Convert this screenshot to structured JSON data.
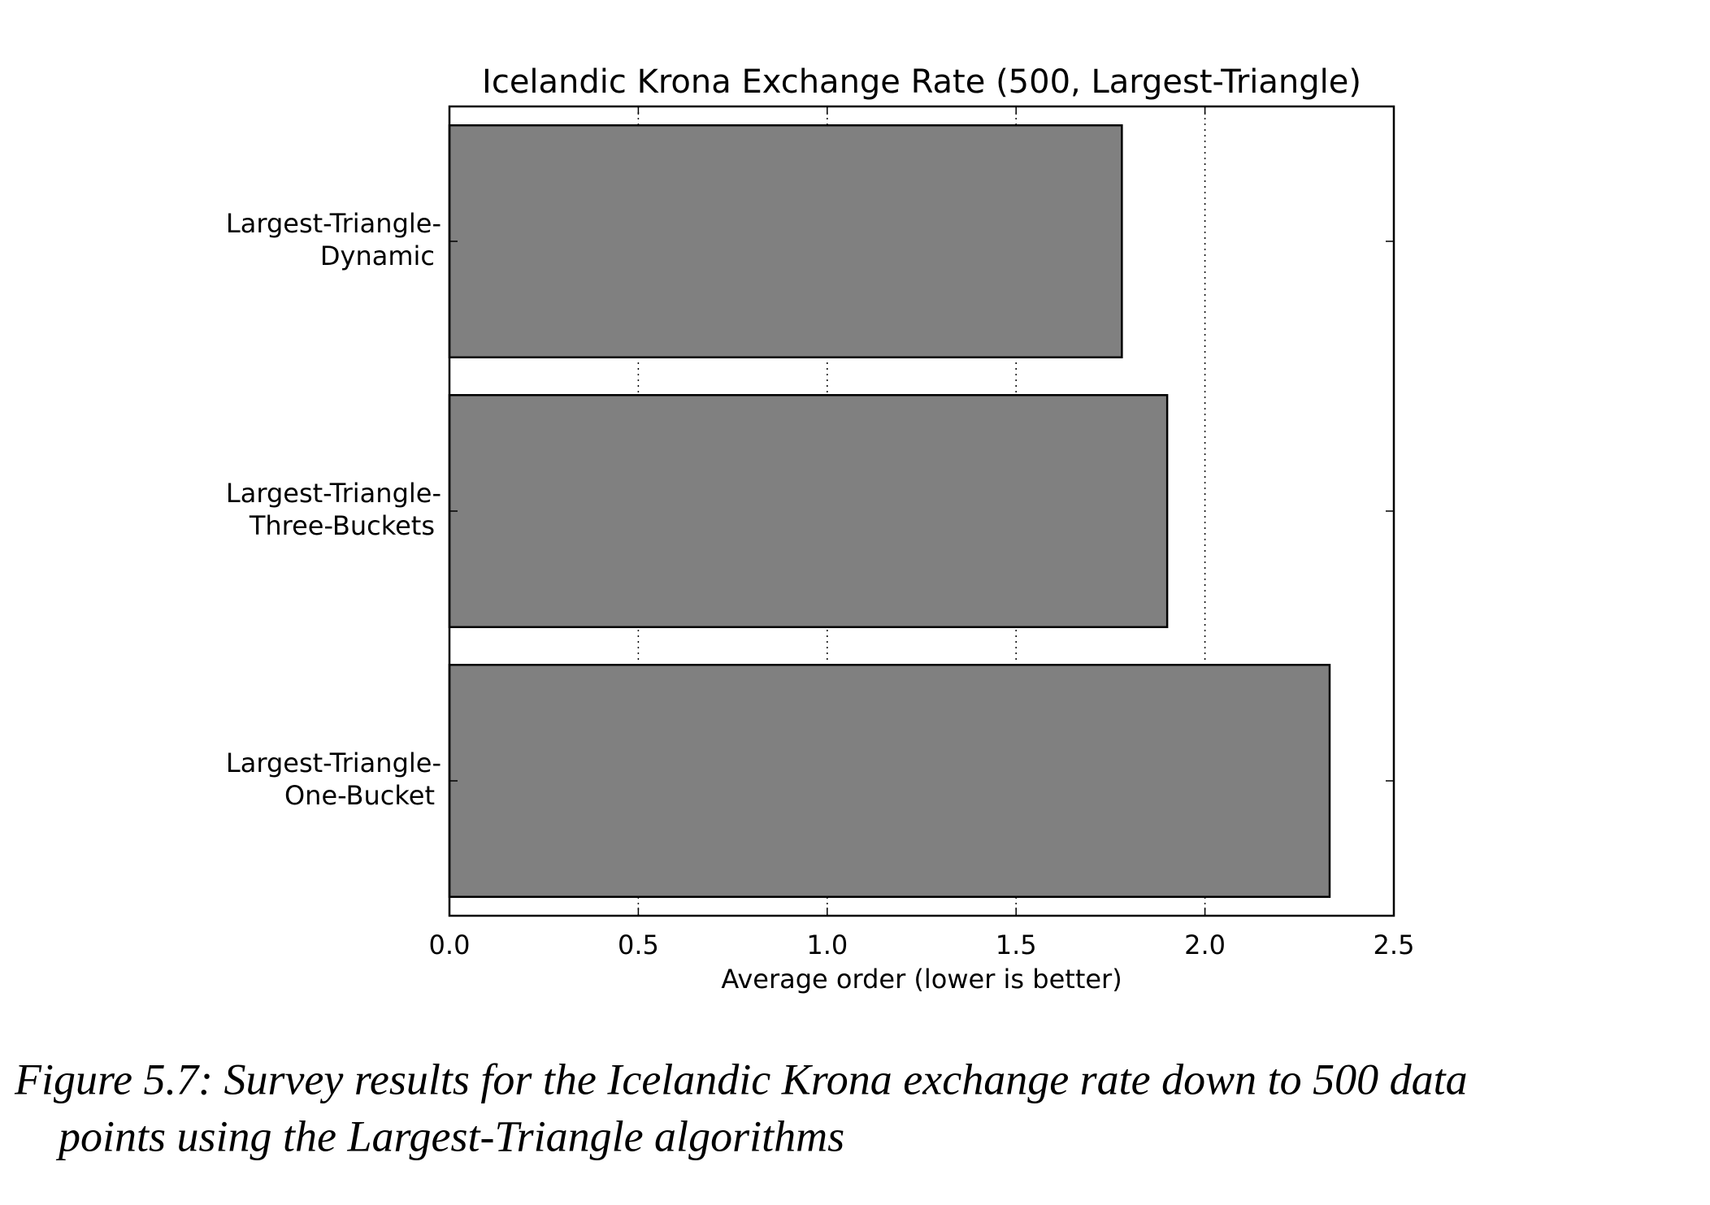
{
  "chart_data": {
    "type": "barh",
    "title": "Icelandic Krona Exchange Rate (500, Largest-Triangle)",
    "xlabel": "Average order (lower is better)",
    "categories": [
      [
        "Largest-Triangle-",
        "Dynamic"
      ],
      [
        "Largest-Triangle-",
        "Three-Buckets"
      ],
      [
        "Largest-Triangle-",
        "One-Bucket"
      ]
    ],
    "values": [
      1.78,
      1.9,
      2.33
    ],
    "color": "#808080",
    "xlim": [
      0,
      2.5
    ],
    "xticks": [
      {
        "value": 0,
        "label": "0.0"
      },
      0.5,
      {
        "value": 1,
        "label": "1.0"
      },
      1.5,
      {
        "value": 2,
        "label": "2.0"
      },
      2.5
    ],
    "grid": true
  },
  "caption": [
    "Figure 5.7: Survey results for the Icelandic Krona exchange rate down to 500 data",
    "points using the Largest-Triangle algorithms"
  ]
}
